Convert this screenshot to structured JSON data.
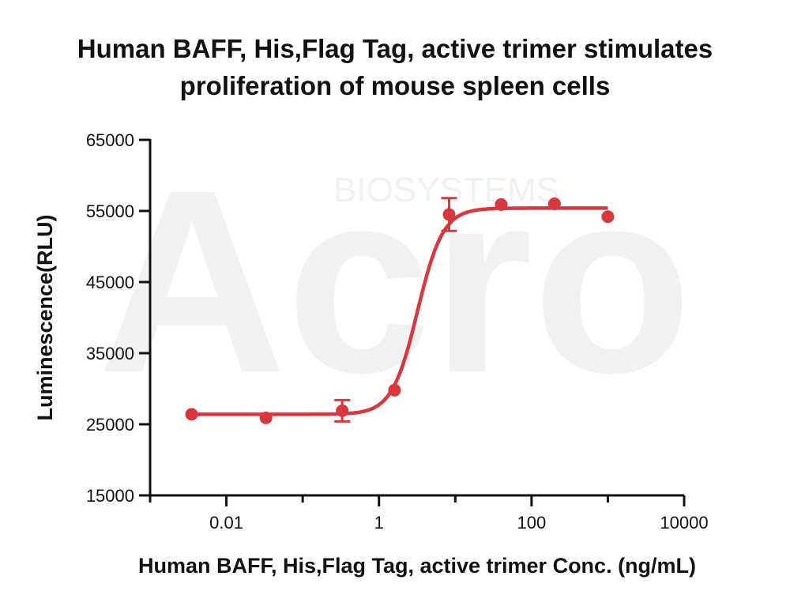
{
  "chart_data": {
    "type": "scatter",
    "title_line1": "Human BAFF, His,Flag Tag, active trimer stimulates",
    "title_line2": "proliferation of mouse spleen cells",
    "xlabel": "Human BAFF, His,Flag Tag, active trimer Conc. (ng/mL)",
    "ylabel": "Luminescence(RLU)",
    "x_scale": "log",
    "xlim": [
      0.001,
      10000
    ],
    "ylim": [
      15000,
      65000
    ],
    "x_ticks": [
      {
        "value": 0.01,
        "label": "0.01"
      },
      {
        "value": 1,
        "label": "1"
      },
      {
        "value": 100,
        "label": "100"
      },
      {
        "value": 10000,
        "label": "10000"
      }
    ],
    "y_ticks": [
      {
        "value": 15000,
        "label": "15000"
      },
      {
        "value": 25000,
        "label": "25000"
      },
      {
        "value": 35000,
        "label": "35000"
      },
      {
        "value": 45000,
        "label": "45000"
      },
      {
        "value": 55000,
        "label": "55000"
      },
      {
        "value": 65000,
        "label": "65000"
      }
    ],
    "series": [
      {
        "color": "#d9363e",
        "points": [
          {
            "x": 0.0035,
            "y": 26400,
            "err": 0
          },
          {
            "x": 0.033,
            "y": 25900,
            "err": 0
          },
          {
            "x": 0.33,
            "y": 26900,
            "err": 1500
          },
          {
            "x": 1.6,
            "y": 29800,
            "err": 0
          },
          {
            "x": 8.3,
            "y": 54500,
            "err": 2300
          },
          {
            "x": 40,
            "y": 55900,
            "err": 0
          },
          {
            "x": 200,
            "y": 56000,
            "err": 0
          },
          {
            "x": 1000,
            "y": 54200,
            "err": 0
          }
        ],
        "fit": {
          "bottom": 26400,
          "top": 55400,
          "ec50": 3.2,
          "hill": 2.6
        }
      }
    ],
    "grid": false,
    "legend": "none"
  },
  "watermark": {
    "letters": "Acro",
    "subtitle": "BIOSYSTEMS"
  }
}
